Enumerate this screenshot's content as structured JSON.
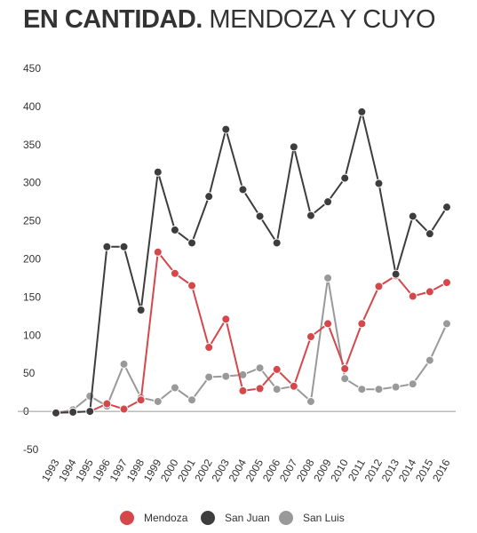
{
  "header": {
    "title_bold": "EN CANTIDAD.",
    "title_rest": "MENDOZA Y CUYO"
  },
  "chart_data": {
    "type": "line",
    "categories": [
      "1993",
      "1994",
      "1995",
      "1996",
      "1997",
      "1998",
      "1999",
      "2000",
      "2001",
      "2002",
      "2003",
      "2004",
      "2005",
      "2006",
      "2007",
      "2008",
      "2009",
      "2010",
      "2011",
      "2012",
      "2013",
      "2014",
      "2015",
      "2016"
    ],
    "ylim": [
      -50,
      450
    ],
    "yticks": [
      450,
      400,
      350,
      300,
      250,
      200,
      150,
      100,
      50,
      0,
      -50
    ],
    "grid": false,
    "legend_position": "bottom",
    "series": [
      {
        "name": "Mendoza",
        "color": "#d4474a",
        "values": [
          -2,
          -1,
          0,
          10,
          3,
          15,
          209,
          181,
          165,
          84,
          121,
          27,
          30,
          55,
          33,
          98,
          115,
          56,
          115,
          164,
          178,
          151,
          157,
          169
        ]
      },
      {
        "name": "San Juan",
        "color": "#3d3d3d",
        "values": [
          -2,
          -1,
          0,
          216,
          216,
          133,
          314,
          238,
          221,
          282,
          370,
          291,
          256,
          221,
          347,
          257,
          275,
          306,
          393,
          299,
          180,
          256,
          233,
          268
        ]
      },
      {
        "name": "San Luis",
        "color": "#999999",
        "values": [
          -2,
          2,
          20,
          7,
          62,
          18,
          13,
          31,
          15,
          45,
          46,
          48,
          57,
          29,
          33,
          13,
          175,
          43,
          29,
          29,
          32,
          36,
          67,
          115
        ]
      }
    ]
  }
}
